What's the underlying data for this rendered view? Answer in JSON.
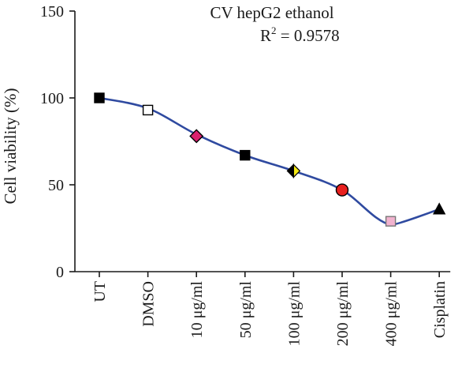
{
  "chart_data": {
    "type": "line",
    "title": "CV hepG2 ethanol",
    "r2_label": "R",
    "r2_exp": "2",
    "r2_value": " = 0.9578",
    "xlabel": "",
    "ylabel": "Cell viability (%)",
    "ylim": [
      0,
      150
    ],
    "yticks": [
      0,
      50,
      100,
      150
    ],
    "categories": [
      "UT",
      "DMSO",
      "10 μg/ml",
      "50 μg/ml",
      "100 μg/ml",
      "200 μg/ml",
      "400 μg/ml",
      "Cisplatin"
    ],
    "values": [
      100,
      93,
      78,
      67,
      58,
      47,
      29,
      36
    ],
    "fit_values": [
      100,
      94,
      79,
      67,
      58,
      47,
      27,
      36
    ],
    "markers": [
      {
        "shape": "square",
        "fill": "#000000",
        "stroke": "#000000"
      },
      {
        "shape": "square",
        "fill": "#ffffff",
        "stroke": "#000000"
      },
      {
        "shape": "diamond",
        "fill": "#d9216e",
        "stroke": "#000000"
      },
      {
        "shape": "square",
        "fill": "#000000",
        "stroke": "#000000"
      },
      {
        "shape": "diamond-half",
        "fill": "#f5ea14",
        "stroke": "#000000"
      },
      {
        "shape": "circle",
        "fill": "#e8201f",
        "stroke": "#000000"
      },
      {
        "shape": "square",
        "fill": "#f2b3cf",
        "stroke": "#777777"
      },
      {
        "shape": "triangle",
        "fill": "#000000",
        "stroke": "#000000"
      }
    ],
    "line_color": "#2f4aa0",
    "grid": false
  }
}
